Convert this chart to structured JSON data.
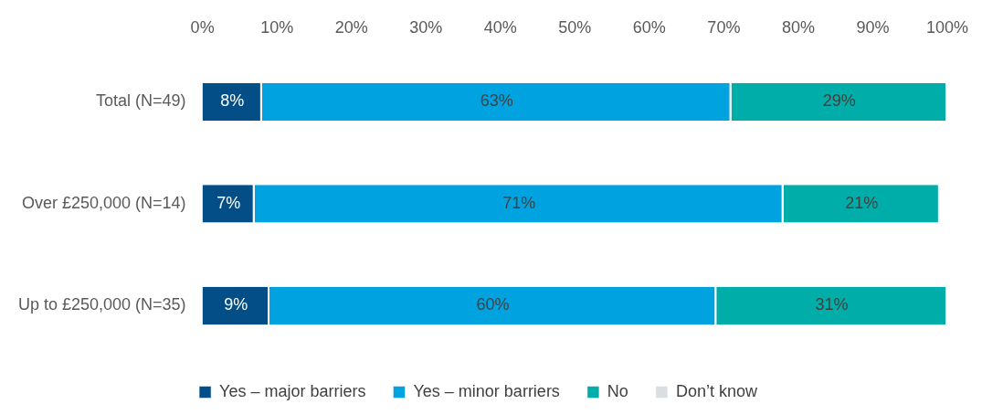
{
  "chart_data": {
    "type": "bar",
    "orientation": "horizontal",
    "stacked": true,
    "categories": [
      "Total (N=49)",
      "Over £250,000 (N=14)",
      "Up to £250,000 (N=35)"
    ],
    "series": [
      {
        "name": "Yes – major barriers",
        "color": "#034e87",
        "values": [
          8,
          7,
          9
        ],
        "value_labels": [
          "8%",
          "7%",
          "9%"
        ]
      },
      {
        "name": "Yes – minor barriers",
        "color": "#00a3e0",
        "values": [
          63,
          71,
          60
        ],
        "value_labels": [
          "63%",
          "71%",
          "60%"
        ]
      },
      {
        "name": "No",
        "color": "#00ada8",
        "values": [
          29,
          21,
          31
        ],
        "value_labels": [
          "29%",
          "21%",
          "31%"
        ]
      },
      {
        "name": "Don’t know",
        "color": "#d9dee3",
        "values": [
          0,
          0,
          0
        ],
        "value_labels": [
          null,
          null,
          null
        ]
      }
    ],
    "xlim": [
      0,
      100
    ],
    "xticks": [
      {
        "value": 0,
        "label": "0%"
      },
      {
        "value": 10,
        "label": "10%"
      },
      {
        "value": 20,
        "label": "20%"
      },
      {
        "value": 30,
        "label": "30%"
      },
      {
        "value": 40,
        "label": "40%"
      },
      {
        "value": 50,
        "label": "50%"
      },
      {
        "value": 60,
        "label": "60%"
      },
      {
        "value": 70,
        "label": "70%"
      },
      {
        "value": 80,
        "label": "80%"
      },
      {
        "value": 90,
        "label": "90%"
      },
      {
        "value": 100,
        "label": "100%"
      }
    ],
    "grid": false,
    "legend": "bottom"
  }
}
